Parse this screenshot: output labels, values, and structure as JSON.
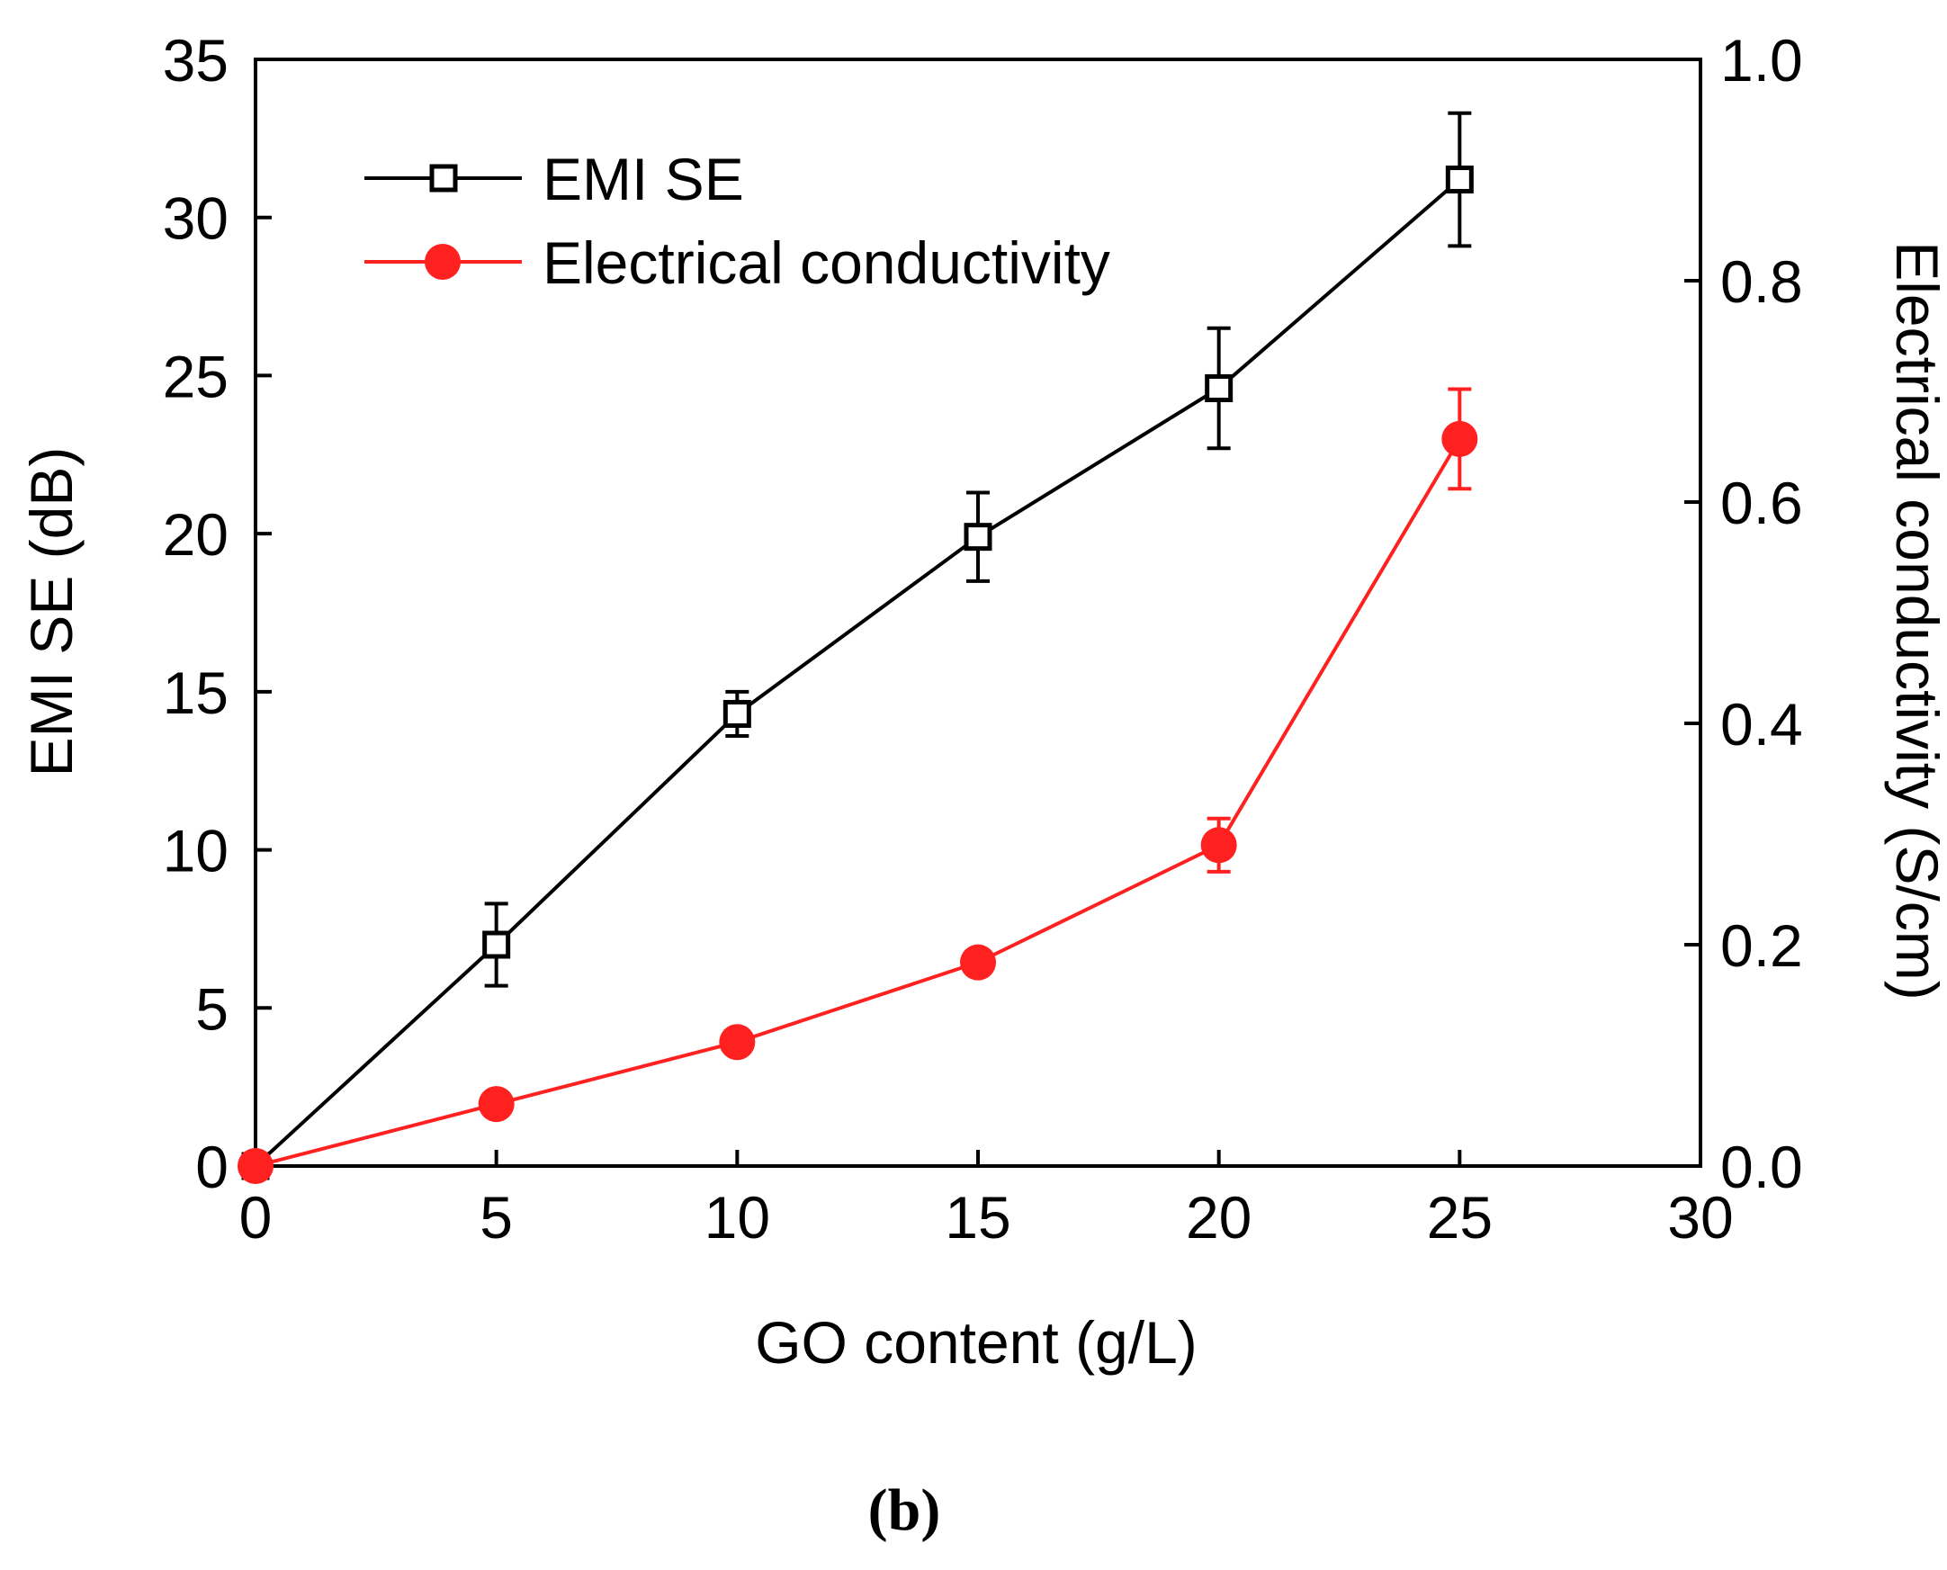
{
  "chart_data": {
    "type": "line",
    "xlabel": "GO content (g/L)",
    "ylabel_left": "EMI SE (dB)",
    "ylabel_right": "Electrical conductivity (S/cm)",
    "panel_label": "(b)",
    "xlim": [
      0,
      30
    ],
    "ylim_left": [
      0,
      35
    ],
    "ylim_right": [
      0.0,
      1.0
    ],
    "x_ticks": [
      0,
      5,
      10,
      15,
      20,
      25,
      30
    ],
    "x_tick_labels": [
      "0",
      "5",
      "10",
      "15",
      "20",
      "25",
      "30"
    ],
    "y_left_ticks": [
      0,
      5,
      10,
      15,
      20,
      25,
      30,
      35
    ],
    "y_left_tick_labels": [
      "0",
      "5",
      "10",
      "15",
      "20",
      "25",
      "30",
      "35"
    ],
    "y_right_ticks": [
      0.0,
      0.2,
      0.4,
      0.6,
      0.8,
      1.0
    ],
    "y_right_tick_labels": [
      "0.0",
      "0.2",
      "0.4",
      "0.6",
      "0.8",
      "1.0"
    ],
    "legend_position": "top-left",
    "series": [
      {
        "name": "EMI SE",
        "axis": "left",
        "color": "#000000",
        "marker": "open-square",
        "x": [
          0,
          5,
          10,
          15,
          20,
          25
        ],
        "values": [
          0,
          7.0,
          14.3,
          19.9,
          24.6,
          31.2
        ],
        "error": [
          0,
          1.3,
          0.7,
          1.4,
          1.9,
          2.1
        ]
      },
      {
        "name": "Electrical conductivity",
        "axis": "right",
        "color": "#ff2020",
        "marker": "filled-circle",
        "x": [
          0,
          5,
          10,
          15,
          20,
          25
        ],
        "values": [
          0.0,
          0.056,
          0.112,
          0.184,
          0.29,
          0.657
        ],
        "error": [
          0,
          0,
          0,
          0,
          0.024,
          0.045
        ]
      }
    ]
  }
}
